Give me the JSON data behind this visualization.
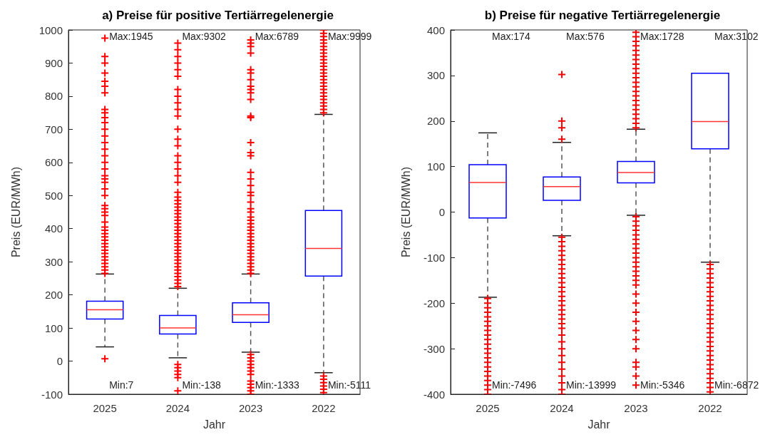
{
  "chart_data": [
    {
      "type": "box",
      "title": "a) Preise für positive Tertiärregelenergie",
      "xlabel": "Jahr",
      "ylabel": "Preis (EUR/MWh)",
      "categories": [
        "2025",
        "2024",
        "2023",
        "2022"
      ],
      "ylim": [
        -100,
        1000
      ],
      "yticks": [
        -100,
        0,
        100,
        200,
        300,
        400,
        500,
        600,
        700,
        800,
        900,
        1000
      ],
      "marker": "cross",
      "line_style": "dashed",
      "series": [
        {
          "color": "#0000ff",
          "boxes": [
            {
              "low": 43,
              "q1": 127,
              "median": 155,
              "q3": 181,
              "high": 263,
              "outliers": [
                7,
                265,
                275,
                285,
                295,
                305,
                315,
                325,
                335,
                345,
                355,
                365,
                375,
                385,
                395,
                405,
                420,
                440,
                450,
                460,
                470,
                500,
                520,
                540,
                550,
                560,
                580,
                600,
                620,
                640,
                660,
                680,
                700,
                720,
                735,
                750,
                760,
                810,
                830,
                845,
                870,
                900,
                920,
                975
              ]
            },
            {
              "low": 10,
              "q1": 82,
              "median": 100,
              "q3": 138,
              "high": 220,
              "outliers": [
                -10,
                -20,
                -30,
                -40,
                -50,
                -90,
                225,
                235,
                245,
                255,
                265,
                275,
                285,
                295,
                305,
                315,
                325,
                335,
                345,
                355,
                365,
                375,
                385,
                395,
                405,
                415,
                425,
                435,
                445,
                455,
                465,
                475,
                485,
                495,
                510,
                540,
                560,
                580,
                600,
                620,
                650,
                670,
                700,
                740,
                760,
                780,
                800,
                820,
                860,
                880,
                900,
                920,
                940,
                960
              ]
            },
            {
              "low": 27,
              "q1": 117,
              "median": 140,
              "q3": 176,
              "high": 263,
              "outliers": [
                20,
                10,
                0,
                -10,
                -20,
                -30,
                -40,
                -60,
                -70,
                -80,
                -90,
                -100,
                265,
                275,
                285,
                295,
                305,
                315,
                325,
                335,
                345,
                355,
                365,
                375,
                385,
                395,
                405,
                415,
                425,
                435,
                450,
                460,
                480,
                500,
                510,
                530,
                550,
                570,
                620,
                630,
                660,
                735,
                740,
                790,
                810,
                820,
                830,
                850,
                870,
                880,
                930,
                950,
                960,
                970
              ]
            },
            {
              "low": -35,
              "q1": 257,
              "median": 340,
              "q3": 455,
              "high": 745,
              "outliers": [
                -45,
                -55,
                -65,
                -75,
                -85,
                -95,
                750,
                760,
                770,
                780,
                790,
                800,
                810,
                820,
                830,
                840,
                850,
                860,
                870,
                880,
                890,
                900,
                910,
                920,
                930,
                940,
                950,
                960,
                970,
                980,
                990,
                1000
              ]
            }
          ]
        }
      ],
      "annotations": [
        "Max:1945",
        "Max:9302",
        "Max:6789",
        "Max:9999",
        "Min:7",
        "Min:-138",
        "Min:-1333",
        "Min:-5111"
      ]
    },
    {
      "type": "box",
      "title": "b) Preise für negative Tertiärregelenergie",
      "xlabel": "Jahr",
      "ylabel": "Preis (EUR/MWh)",
      "categories": [
        "2025",
        "2024",
        "2023",
        "2022"
      ],
      "ylim": [
        -400,
        400
      ],
      "yticks": [
        -400,
        -300,
        -200,
        -100,
        0,
        100,
        200,
        300,
        400
      ],
      "marker": "cross",
      "line_style": "dashed",
      "series": [
        {
          "color": "#0000ff",
          "boxes": [
            {
              "low": -187,
              "q1": -13,
              "median": 65,
              "q3": 104,
              "high": 174,
              "outliers": [
                -190,
                -200,
                -210,
                -220,
                -230,
                -240,
                -250,
                -260,
                -270,
                -280,
                -290,
                -300,
                -310,
                -320,
                -330,
                -340,
                -350,
                -360,
                -370,
                -380,
                -390,
                -400
              ]
            },
            {
              "low": -52,
              "q1": 26,
              "median": 56,
              "q3": 77,
              "high": 153,
              "outliers": [
                160,
                185,
                200,
                302,
                -55,
                -65,
                -75,
                -85,
                -95,
                -105,
                -115,
                -125,
                -135,
                -145,
                -155,
                -165,
                -175,
                -185,
                -195,
                -205,
                -215,
                -225,
                -235,
                -245,
                -255,
                -270,
                -285,
                -300,
                -315,
                -330,
                -345,
                -360,
                -375,
                -390,
                -400
              ]
            },
            {
              "low": -7,
              "q1": 64,
              "median": 87,
              "q3": 111,
              "high": 182,
              "outliers": [
                185,
                195,
                205,
                215,
                225,
                235,
                245,
                255,
                265,
                275,
                285,
                295,
                305,
                315,
                325,
                335,
                345,
                355,
                365,
                375,
                385,
                395,
                -10,
                -20,
                -30,
                -40,
                -50,
                -60,
                -70,
                -80,
                -90,
                -100,
                -110,
                -120,
                -130,
                -140,
                -150,
                -160,
                -180,
                -200,
                -220,
                -240,
                -260,
                -280,
                -300,
                -330,
                -340,
                -360,
                -380
              ]
            },
            {
              "low": -110,
              "q1": 139,
              "median": 199,
              "q3": 305,
              "high": null,
              "outliers": [
                -115,
                -125,
                -135,
                -145,
                -155,
                -165,
                -175,
                -185,
                -195,
                -205,
                -215,
                -225,
                -235,
                -245,
                -255,
                -265,
                -275,
                -285,
                -295,
                -305,
                -315,
                -325,
                -335,
                -345,
                -355,
                -365,
                -375,
                -385,
                -395
              ]
            }
          ]
        }
      ],
      "annotations": [
        "Max:174",
        "Max:576",
        "Max:1728",
        "Max:3102",
        "Min:-7496",
        "Min:-13999",
        "Min:-5346",
        "Min:-6872"
      ]
    }
  ]
}
